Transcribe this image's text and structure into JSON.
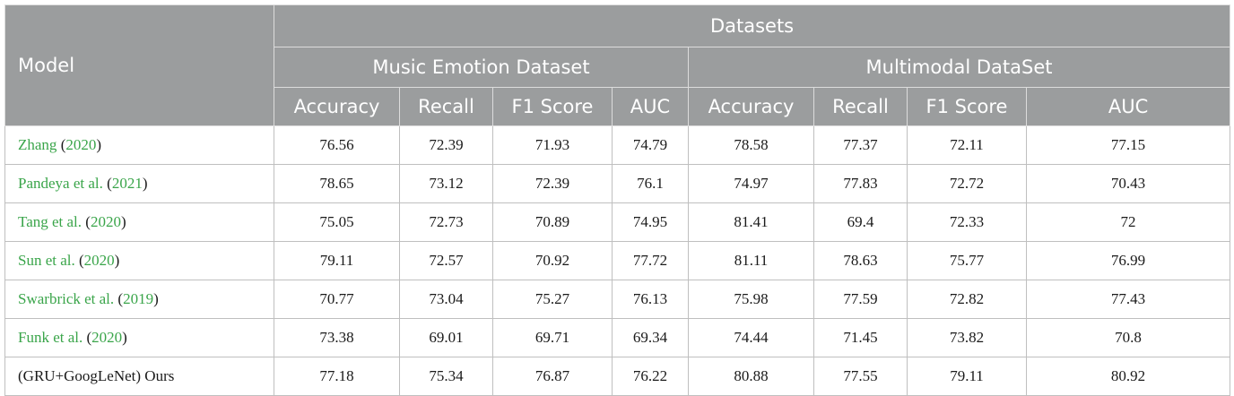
{
  "chart_data": {
    "type": "table",
    "header": {
      "model": "Model",
      "datasets": "Datasets",
      "groups": [
        "Music Emotion Dataset",
        "Multimodal DataSet"
      ],
      "metrics": [
        "Accuracy",
        "Recall",
        "F1 Score",
        "AUC",
        "Accuracy",
        "Recall",
        "F1 Score",
        "AUC"
      ]
    },
    "rows": [
      {
        "name": "Zhang",
        "open": " (",
        "year": "2020",
        "close": ")",
        "values": [
          "76.56",
          "72.39",
          "71.93",
          "74.79",
          "78.58",
          "77.37",
          "72.11",
          "77.15"
        ]
      },
      {
        "name": "Pandeya et al.",
        "open": " (",
        "year": "2021",
        "close": ")",
        "values": [
          "78.65",
          "73.12",
          "72.39",
          "76.1",
          "74.97",
          "77.83",
          "72.72",
          "70.43"
        ]
      },
      {
        "name": "Tang et al.",
        "open": " (",
        "year": "2020",
        "close": ")",
        "values": [
          "75.05",
          "72.73",
          "70.89",
          "74.95",
          "81.41",
          "69.4",
          "72.33",
          "72"
        ]
      },
      {
        "name": "Sun et al.",
        "open": " (",
        "year": "2020",
        "close": ")",
        "values": [
          "79.11",
          "72.57",
          "70.92",
          "77.72",
          "81.11",
          "78.63",
          "75.77",
          "76.99"
        ]
      },
      {
        "name": "Swarbrick et al.",
        "open": " (",
        "year": "2019",
        "close": ")",
        "values": [
          "70.77",
          "73.04",
          "75.27",
          "76.13",
          "75.98",
          "77.59",
          "72.82",
          "77.43"
        ]
      },
      {
        "name": "Funk et al.",
        "open": " (",
        "year": "2020",
        "close": ")",
        "values": [
          "73.38",
          "69.01",
          "69.71",
          "69.34",
          "74.44",
          "71.45",
          "73.82",
          "70.8"
        ]
      }
    ],
    "ours": {
      "name": "(GRU+GoogLeNet) Ours",
      "values": [
        "77.18",
        "75.34",
        "76.87",
        "76.22",
        "80.88",
        "77.55",
        "79.11",
        "80.92"
      ]
    }
  },
  "colors": {
    "header_bg": "#9b9d9e",
    "citation_green": "#3aa54a"
  }
}
